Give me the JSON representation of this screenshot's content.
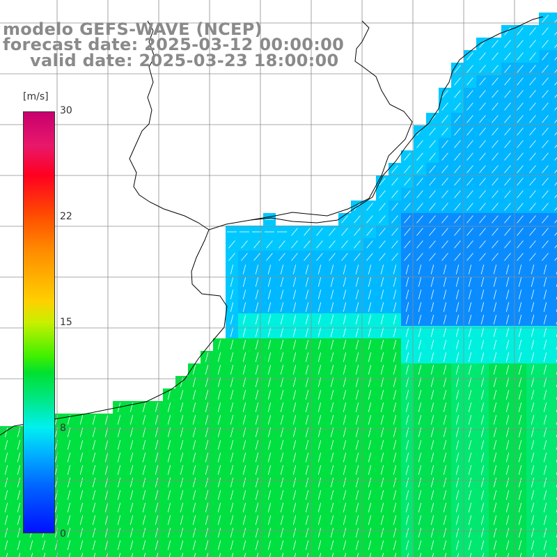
{
  "titles": {
    "line1": "modelo GEFS-WAVE (NCEP)",
    "line2": "forecast date: 2025-03-12 00:00:00",
    "line3": "valid date: 2025-03-23 18:00:00"
  },
  "colorbar": {
    "unit": "[m/s]",
    "ticks": [
      "30",
      "22",
      "15",
      "8",
      "0"
    ],
    "tick_values": [
      30,
      22,
      15,
      8,
      0
    ],
    "range": [
      0,
      30
    ],
    "colors": [
      "#0010ff",
      "#0064ff",
      "#00b4ff",
      "#00f0f0",
      "#00e890",
      "#00e030",
      "#40f000",
      "#c8f000",
      "#ffd000",
      "#ff8c00",
      "#ff5000",
      "#ff0020",
      "#e8186a",
      "#c8006e"
    ]
  },
  "map": {
    "land_color": "#ffffff",
    "grid_color": "#8c8c8c",
    "coast_color": "#000000",
    "arrow_color": "#ffffff"
  }
}
